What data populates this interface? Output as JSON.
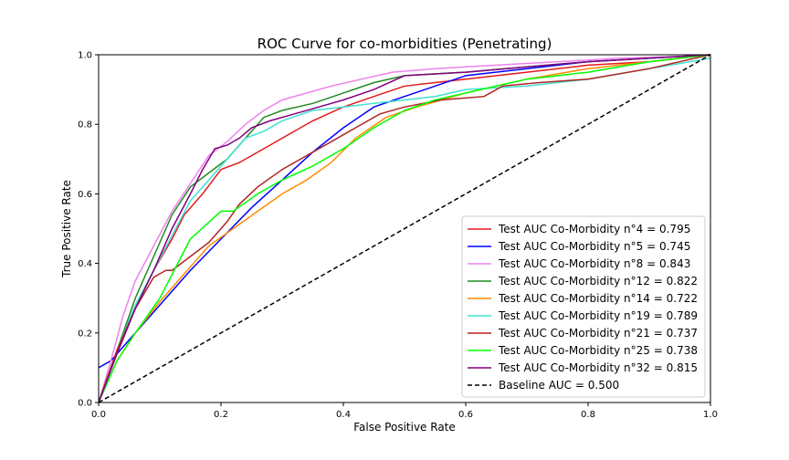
{
  "chart_data": {
    "type": "line",
    "title": "ROC Curve for co-morbidities (Penetrating)",
    "xlabel": "False Positive Rate",
    "ylabel": "True Positive Rate",
    "xlim": [
      0,
      1
    ],
    "ylim": [
      0,
      1
    ],
    "xticks": [
      "0.0",
      "0.2",
      "0.4",
      "0.6",
      "0.8",
      "1.0"
    ],
    "yticks": [
      "0.0",
      "0.2",
      "0.4",
      "0.6",
      "0.8",
      "1.0"
    ],
    "grid": false,
    "legend_position": "lower-right",
    "series": [
      {
        "name": "Test AUC Co-Morbidity n°4 = 0.795",
        "color": "#e31a1c",
        "x": [
          0,
          0.03,
          0.06,
          0.09,
          0.12,
          0.14,
          0.17,
          0.2,
          0.23,
          0.25,
          0.28,
          0.3,
          0.35,
          0.4,
          0.45,
          0.5,
          0.55,
          0.6,
          0.7,
          0.8,
          0.9,
          1.0
        ],
        "y": [
          0,
          0.15,
          0.27,
          0.38,
          0.47,
          0.54,
          0.6,
          0.67,
          0.69,
          0.71,
          0.74,
          0.76,
          0.81,
          0.85,
          0.88,
          0.91,
          0.92,
          0.93,
          0.95,
          0.97,
          0.98,
          1.0
        ]
      },
      {
        "name": "Test AUC Co-Morbidity n°5 = 0.745",
        "color": "#0000ff",
        "x": [
          0,
          0.02,
          0.05,
          0.1,
          0.15,
          0.2,
          0.25,
          0.3,
          0.35,
          0.4,
          0.45,
          0.5,
          0.6,
          0.7,
          0.8,
          0.9,
          1.0
        ],
        "y": [
          0.1,
          0.12,
          0.18,
          0.28,
          0.38,
          0.47,
          0.56,
          0.64,
          0.72,
          0.79,
          0.85,
          0.88,
          0.94,
          0.96,
          0.98,
          0.99,
          1.0
        ]
      },
      {
        "name": "Test AUC Co-Morbidity n°8 = 0.843",
        "color": "#ee82ee",
        "x": [
          0,
          0.02,
          0.04,
          0.06,
          0.09,
          0.12,
          0.15,
          0.18,
          0.21,
          0.24,
          0.27,
          0.3,
          0.34,
          0.38,
          0.43,
          0.48,
          0.55,
          0.65,
          0.75,
          0.85,
          0.95,
          1.0
        ],
        "y": [
          0,
          0.12,
          0.25,
          0.35,
          0.45,
          0.55,
          0.63,
          0.71,
          0.75,
          0.8,
          0.84,
          0.87,
          0.89,
          0.91,
          0.93,
          0.95,
          0.96,
          0.97,
          0.98,
          0.99,
          0.995,
          1.0
        ]
      },
      {
        "name": "Test AUC Co-Morbidity n°12 = 0.822",
        "color": "#228b22",
        "x": [
          0,
          0.03,
          0.06,
          0.09,
          0.12,
          0.15,
          0.18,
          0.21,
          0.24,
          0.27,
          0.3,
          0.35,
          0.4,
          0.45,
          0.5,
          0.6,
          0.7,
          0.8,
          0.9,
          1.0
        ],
        "y": [
          0,
          0.15,
          0.3,
          0.42,
          0.54,
          0.62,
          0.66,
          0.7,
          0.76,
          0.82,
          0.84,
          0.86,
          0.89,
          0.92,
          0.94,
          0.95,
          0.965,
          0.98,
          0.99,
          1.0
        ]
      },
      {
        "name": "Test AUC Co-Morbidity n°14 = 0.722",
        "color": "#ff8c00",
        "x": [
          0,
          0.03,
          0.06,
          0.1,
          0.14,
          0.18,
          0.22,
          0.26,
          0.3,
          0.34,
          0.38,
          0.42,
          0.47,
          0.52,
          0.6,
          0.7,
          0.8,
          0.9,
          1.0
        ],
        "y": [
          0,
          0.12,
          0.2,
          0.29,
          0.37,
          0.45,
          0.5,
          0.55,
          0.6,
          0.64,
          0.69,
          0.76,
          0.82,
          0.85,
          0.89,
          0.93,
          0.96,
          0.98,
          1.0
        ]
      },
      {
        "name": "Test AUC Co-Morbidity n°19 = 0.789",
        "color": "#40e0d0",
        "x": [
          0,
          0.03,
          0.06,
          0.09,
          0.12,
          0.15,
          0.18,
          0.21,
          0.24,
          0.27,
          0.3,
          0.35,
          0.4,
          0.45,
          0.5,
          0.55,
          0.6,
          0.7,
          0.8,
          0.9,
          1.0
        ],
        "y": [
          0,
          0.15,
          0.28,
          0.38,
          0.48,
          0.58,
          0.64,
          0.7,
          0.76,
          0.78,
          0.81,
          0.84,
          0.85,
          0.86,
          0.87,
          0.88,
          0.9,
          0.91,
          0.93,
          0.96,
          0.99
        ]
      },
      {
        "name": "Test AUC Co-Morbidity n°21 = 0.737",
        "color": "#b22222",
        "x": [
          0,
          0.03,
          0.06,
          0.09,
          0.1,
          0.11,
          0.12,
          0.15,
          0.18,
          0.21,
          0.23,
          0.26,
          0.3,
          0.34,
          0.38,
          0.42,
          0.46,
          0.5,
          0.56,
          0.63,
          0.66,
          0.72,
          0.8,
          0.9,
          1.0
        ],
        "y": [
          0,
          0.15,
          0.27,
          0.36,
          0.37,
          0.38,
          0.38,
          0.42,
          0.46,
          0.52,
          0.57,
          0.62,
          0.67,
          0.71,
          0.75,
          0.79,
          0.83,
          0.85,
          0.87,
          0.88,
          0.91,
          0.92,
          0.93,
          0.96,
          1.0
        ]
      },
      {
        "name": "Test AUC Co-Morbidity n°25 = 0.738",
        "color": "#00ff00",
        "x": [
          0,
          0.03,
          0.06,
          0.1,
          0.15,
          0.2,
          0.22,
          0.26,
          0.3,
          0.35,
          0.4,
          0.45,
          0.5,
          0.55,
          0.6,
          0.7,
          0.8,
          0.9,
          1.0
        ],
        "y": [
          0,
          0.12,
          0.2,
          0.3,
          0.47,
          0.55,
          0.55,
          0.6,
          0.64,
          0.68,
          0.73,
          0.79,
          0.84,
          0.87,
          0.89,
          0.93,
          0.95,
          0.98,
          1.0
        ]
      },
      {
        "name": "Test AUC Co-Morbidity n°32 = 0.815",
        "color": "#800080",
        "x": [
          0,
          0.03,
          0.06,
          0.09,
          0.12,
          0.15,
          0.17,
          0.19,
          0.21,
          0.23,
          0.25,
          0.28,
          0.32,
          0.36,
          0.4,
          0.45,
          0.5,
          0.6,
          0.7,
          0.8,
          0.9,
          1.0
        ],
        "y": [
          0,
          0.14,
          0.27,
          0.38,
          0.5,
          0.6,
          0.67,
          0.73,
          0.74,
          0.76,
          0.79,
          0.81,
          0.83,
          0.85,
          0.87,
          0.9,
          0.94,
          0.95,
          0.965,
          0.98,
          0.99,
          1.0
        ]
      },
      {
        "name": "Baseline AUC = 0.500",
        "color": "#000000",
        "dashed": true,
        "x": [
          0,
          1
        ],
        "y": [
          0,
          1
        ]
      }
    ]
  }
}
